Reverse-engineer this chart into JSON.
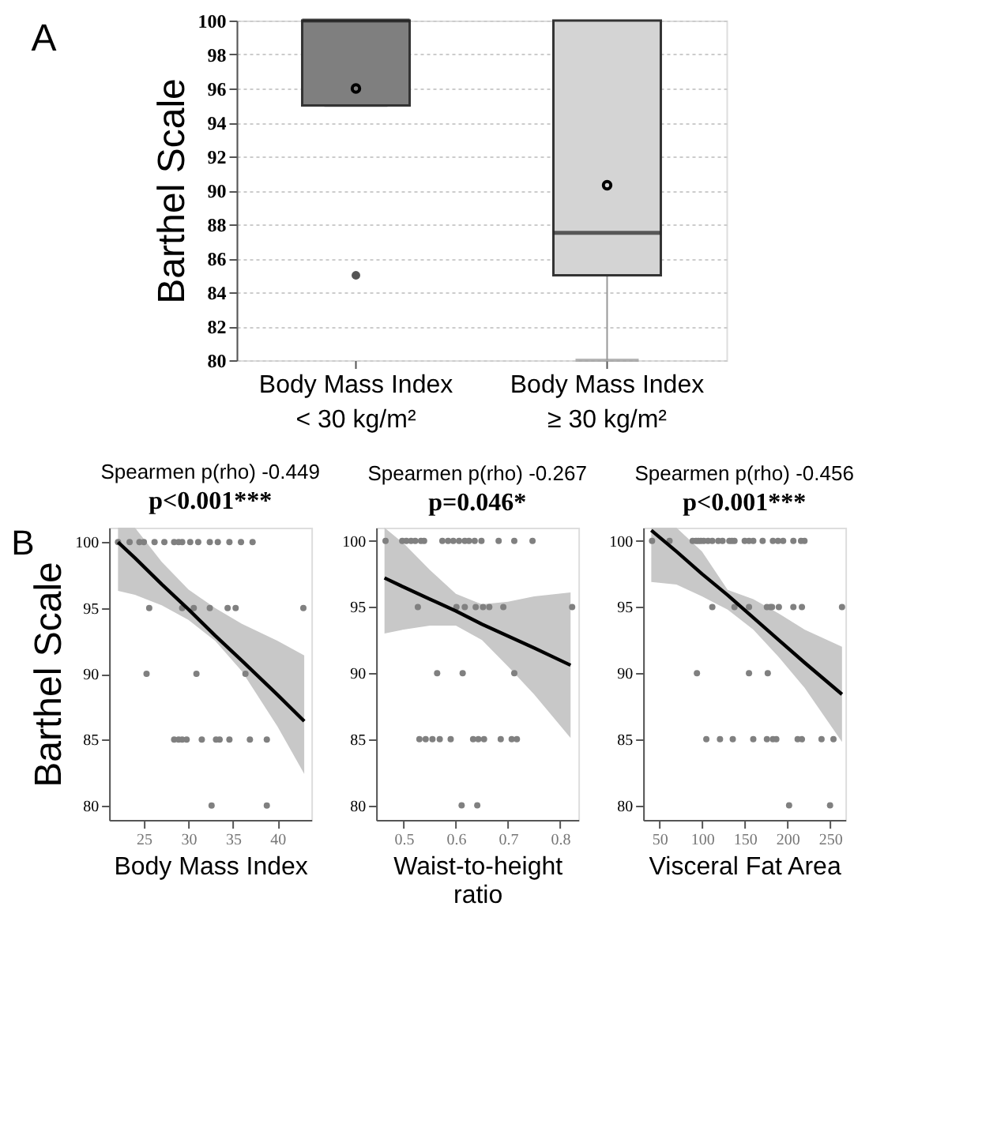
{
  "chart_data": [
    {
      "type": "box",
      "ylabel": "Barthel Scale",
      "annotations": [
        "A"
      ],
      "categories": [
        "Body Mass Index < 30 kg/m²",
        "Body Mass Index ≥ 30 kg/m²"
      ],
      "colors": [
        "#7f7f7f",
        "#d4d4d4"
      ],
      "boxes": [
        {
          "low": 95,
          "q1": 95,
          "median": 100,
          "q3": 100,
          "high": 100,
          "mean": 96,
          "outliers": [
            85
          ]
        },
        {
          "low": 80,
          "q1": 85,
          "median": 87.5,
          "q3": 100,
          "high": 100,
          "mean": 90.3
        }
      ],
      "ylim": [
        80,
        100
      ],
      "yticks": [
        80,
        82,
        84,
        86,
        88,
        90,
        92,
        94,
        96,
        98,
        100
      ],
      "grid": "y",
      "legend": false
    },
    {
      "type": "scatter",
      "title": "Spearmen p(rho) -0.449",
      "subtitle": "p<0.001***",
      "xlabel": "Body Mass Index",
      "ylabel": "Barthel Scale",
      "annotations": [
        "B"
      ],
      "grid": false,
      "xlim": [
        21.1,
        43.8
      ],
      "xticks": [
        25,
        30,
        35,
        40
      ],
      "ylim": [
        78.9,
        101.1
      ],
      "yticks": [
        80,
        85,
        90,
        95,
        100
      ],
      "series": [
        {
          "type": "line",
          "color": "#000000",
          "x": [
            22.1,
            24,
            27,
            30,
            33,
            36,
            40,
            43
          ],
          "values": [
            100,
            98.8,
            96.8,
            94.9,
            92.9,
            91.0,
            88.4,
            86.4
          ],
          "lower": [
            96.3,
            96.0,
            95.2,
            94.1,
            92.5,
            90.2,
            86.0,
            82.4
          ],
          "upper": [
            101.1,
            101.1,
            98.5,
            96.4,
            95.0,
            93.8,
            92.5,
            91.4
          ]
        },
        {
          "type": "scatter",
          "marker": "circle",
          "color": "#808080",
          "x": [
            22.1,
            23.4,
            24.5,
            25,
            26.2,
            27.3,
            28.4,
            28.9,
            29.3,
            30.2,
            31.1,
            32.4,
            33.3,
            34.6,
            35.9,
            37.2,
            25.6,
            29.3,
            30.6,
            32.4,
            34.4,
            35.3,
            42.9,
            25.3,
            30.9,
            36.4,
            28.4,
            28.9,
            29.3,
            29.8,
            31.5,
            33.1,
            33.5,
            34.6,
            36.9,
            38.8,
            32.6,
            38.8
          ],
          "values": [
            100,
            100,
            100,
            100,
            100,
            100,
            100,
            100,
            100,
            100,
            100,
            100,
            100,
            100,
            100,
            100,
            95,
            95,
            95,
            95,
            95,
            95,
            95,
            90,
            90,
            90,
            85,
            85,
            85,
            85,
            85,
            85,
            85,
            85,
            85,
            85,
            80,
            80
          ]
        }
      ]
    },
    {
      "type": "scatter",
      "title": "Spearmen p(rho) -0.267",
      "subtitle": "p=0.046*",
      "xlabel": "Waist-to-height ratio",
      "grid": false,
      "xlim": [
        0.447,
        0.835
      ],
      "xticks": [
        0.5,
        0.6,
        0.7,
        0.8
      ],
      "ylim": [
        78.9,
        101
      ],
      "yticks": [
        80,
        85,
        90,
        95,
        100
      ],
      "series": [
        {
          "type": "line",
          "color": "#000000",
          "x": [
            0.463,
            0.5,
            0.55,
            0.6,
            0.65,
            0.7,
            0.75,
            0.82
          ],
          "values": [
            97.2,
            96.5,
            95.6,
            94.7,
            93.7,
            92.8,
            91.9,
            90.6
          ],
          "lower": [
            93.0,
            93.3,
            93.6,
            93.6,
            92.5,
            90.5,
            88.4,
            85.1
          ],
          "upper": [
            101,
            99.8,
            97.8,
            96.0,
            95.2,
            95.4,
            95.8,
            96.1
          ]
        },
        {
          "type": "scatter",
          "marker": "circle",
          "color": "#808080",
          "x": [
            0.465,
            0.497,
            0.505,
            0.514,
            0.522,
            0.533,
            0.539,
            0.574,
            0.585,
            0.595,
            0.606,
            0.617,
            0.625,
            0.636,
            0.649,
            0.682,
            0.712,
            0.747,
            0.527,
            0.601,
            0.617,
            0.638,
            0.652,
            0.664,
            0.691,
            0.823,
            0.564,
            0.613,
            0.712,
            0.53,
            0.542,
            0.555,
            0.569,
            0.59,
            0.633,
            0.643,
            0.654,
            0.686,
            0.707,
            0.717,
            0.611,
            0.641
          ],
          "values": [
            100,
            100,
            100,
            100,
            100,
            100,
            100,
            100,
            100,
            100,
            100,
            100,
            100,
            100,
            100,
            100,
            100,
            100,
            95,
            95,
            95,
            95,
            95,
            95,
            95,
            95,
            90,
            90,
            90,
            85,
            85,
            85,
            85,
            85,
            85,
            85,
            85,
            85,
            85,
            85,
            80,
            80
          ]
        }
      ]
    },
    {
      "type": "scatter",
      "title": "Spearmen p(rho) -0.456",
      "subtitle": "p<0.001***",
      "xlabel": "Visceral Fat Area",
      "grid": false,
      "xlim": [
        31,
        268
      ],
      "xticks": [
        50,
        100,
        150,
        200,
        250
      ],
      "ylim": [
        78.9,
        101
      ],
      "yticks": [
        80,
        85,
        90,
        95,
        100
      ],
      "series": [
        {
          "type": "line",
          "color": "#000000",
          "x": [
            40.5,
            70,
            100,
            130,
            160,
            190,
            220,
            264
          ],
          "values": [
            100.8,
            99.2,
            97.5,
            95.9,
            94.2,
            92.5,
            90.8,
            88.4
          ],
          "lower": [
            96.9,
            96.7,
            95.8,
            94.8,
            93.3,
            91.2,
            88.9,
            84.8
          ],
          "upper": [
            101,
            101,
            99.2,
            96.3,
            95.6,
            94.5,
            93.3,
            92.0
          ]
        },
        {
          "type": "scatter",
          "marker": "circle",
          "color": "#808080",
          "x": [
            41.4,
            61.9,
            89,
            92.9,
            95.7,
            98.6,
            102,
            107,
            112,
            119,
            124,
            132,
            135,
            138,
            150,
            155,
            160,
            171,
            183,
            189,
            195,
            207,
            216,
            220,
            112,
            138,
            155,
            176,
            180,
            182,
            190,
            207,
            217,
            264,
            94,
            155,
            177,
            105,
            121,
            136,
            160,
            176,
            183,
            187,
            212,
            217,
            240,
            254,
            202,
            250
          ],
          "values": [
            100,
            100,
            100,
            100,
            100,
            100,
            100,
            100,
            100,
            100,
            100,
            100,
            100,
            100,
            100,
            100,
            100,
            100,
            100,
            100,
            100,
            100,
            100,
            100,
            95,
            95,
            95,
            95,
            95,
            95,
            95,
            95,
            95,
            95,
            90,
            90,
            90,
            85,
            85,
            85,
            85,
            85,
            85,
            85,
            85,
            85,
            85,
            85,
            80,
            80
          ]
        }
      ]
    }
  ]
}
